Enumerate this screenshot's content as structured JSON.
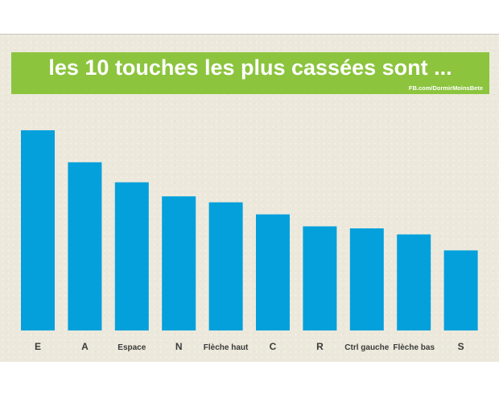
{
  "banner": {
    "title": "les 10 touches les plus cassées sont ...",
    "credit": "FB.com/DormirMoinsBete",
    "color": "#8cc43e"
  },
  "chart_data": {
    "type": "bar",
    "title": "les 10 touches les plus cassées sont ...",
    "categories": [
      "E",
      "A",
      "Espace",
      "N",
      "Flèche haut",
      "C",
      "R",
      "Ctrl gauche",
      "Flèche bas",
      "S"
    ],
    "values": [
      100,
      84,
      74,
      67,
      64,
      58,
      52,
      51,
      48,
      40
    ],
    "ylim": [
      0,
      100
    ],
    "grid": false,
    "bar_color": "#04a0dc"
  }
}
